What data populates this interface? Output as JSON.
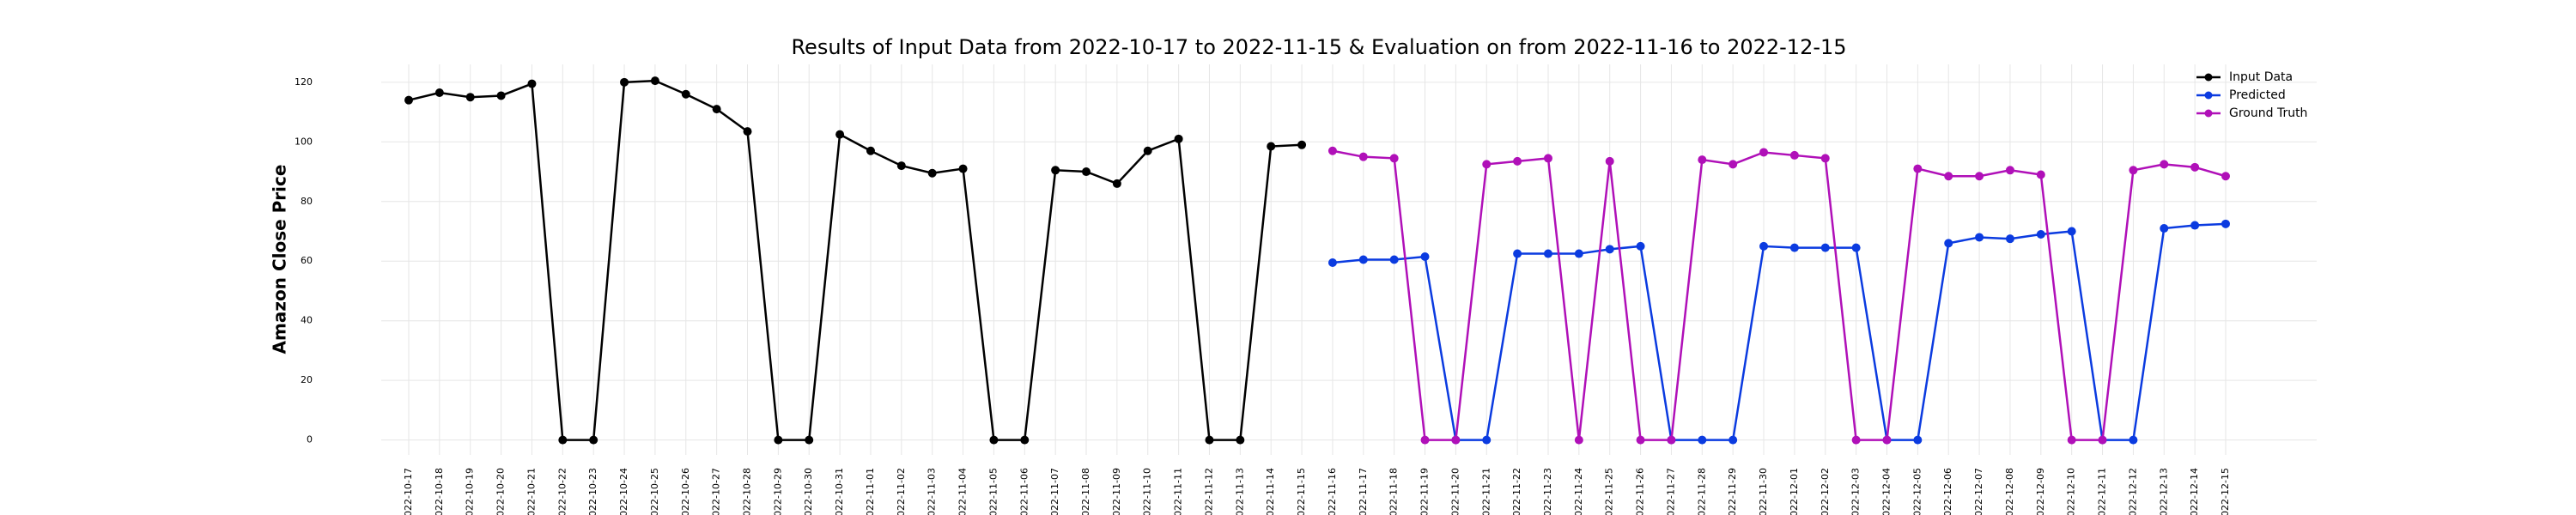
{
  "chart_data": {
    "type": "line",
    "title": "Results of Input Data from 2022-10-17 to 2022-11-15 & Evaluation on from 2022-11-16 to 2022-12-15",
    "y_label": "Amazon Close Price",
    "categories": [
      "2022-10-17",
      "2022-10-18",
      "2022-10-19",
      "2022-10-20",
      "2022-10-21",
      "2022-10-22",
      "2022-10-23",
      "2022-10-24",
      "2022-10-25",
      "2022-10-26",
      "2022-10-27",
      "2022-10-28",
      "2022-10-29",
      "2022-10-30",
      "2022-10-31",
      "2022-11-01",
      "2022-11-02",
      "2022-11-03",
      "2022-11-04",
      "2022-11-05",
      "2022-11-06",
      "2022-11-07",
      "2022-11-08",
      "2022-11-09",
      "2022-11-10",
      "2022-11-11",
      "2022-11-12",
      "2022-11-13",
      "2022-11-14",
      "2022-11-15",
      "2022-11-16",
      "2022-11-17",
      "2022-11-18",
      "2022-11-19",
      "2022-11-20",
      "2022-11-21",
      "2022-11-22",
      "2022-11-23",
      "2022-11-24",
      "2022-11-25",
      "2022-11-26",
      "2022-11-27",
      "2022-11-28",
      "2022-11-29",
      "2022-11-30",
      "2022-12-01",
      "2022-12-02",
      "2022-12-03",
      "2022-12-04",
      "2022-12-05",
      "2022-12-06",
      "2022-12-07",
      "2022-12-08",
      "2022-12-09",
      "2022-12-10",
      "2022-12-11",
      "2022-12-12",
      "2022-12-13",
      "2022-12-14",
      "2022-12-15"
    ],
    "series": [
      {
        "name": "Input Data",
        "color": "#000000",
        "values": [
          114,
          116.5,
          115,
          115.5,
          119.5,
          0,
          0,
          120,
          120.5,
          116,
          111,
          103.5,
          0,
          0,
          102.5,
          97,
          92,
          89.5,
          91,
          0,
          0,
          90.5,
          90,
          86,
          97,
          101,
          0,
          0,
          98.5,
          99,
          null,
          null,
          null,
          null,
          null,
          null,
          null,
          null,
          null,
          null,
          null,
          null,
          null,
          null,
          null,
          null,
          null,
          null,
          null,
          null,
          null,
          null,
          null,
          null,
          null,
          null,
          null,
          null,
          null,
          null
        ]
      },
      {
        "name": "Predicted",
        "color": "#0b3be0",
        "values": [
          null,
          null,
          null,
          null,
          null,
          null,
          null,
          null,
          null,
          null,
          null,
          null,
          null,
          null,
          null,
          null,
          null,
          null,
          null,
          null,
          null,
          null,
          null,
          null,
          null,
          null,
          null,
          null,
          null,
          null,
          59.5,
          60.5,
          60.5,
          61.5,
          0,
          0,
          62.5,
          62.5,
          62.5,
          64,
          65,
          0,
          0,
          0,
          65,
          64.5,
          64.5,
          64.5,
          0,
          0,
          66,
          68,
          67.5,
          69,
          70,
          0,
          0,
          71,
          72,
          72.5
        ]
      },
      {
        "name": "Ground Truth",
        "color": "#b010b8",
        "values": [
          null,
          null,
          null,
          null,
          null,
          null,
          null,
          null,
          null,
          null,
          null,
          null,
          null,
          null,
          null,
          null,
          null,
          null,
          null,
          null,
          null,
          null,
          null,
          null,
          null,
          null,
          null,
          null,
          null,
          null,
          97,
          95,
          94.5,
          0,
          0,
          92.5,
          93.5,
          94.5,
          0,
          93.5,
          0,
          0,
          94,
          92.5,
          96.5,
          95.5,
          94.5,
          0,
          0,
          91,
          88.5,
          88.5,
          90.5,
          89,
          0,
          0,
          90.5,
          92.5,
          91.5,
          88.5
        ]
      }
    ],
    "ylim": [
      -5,
      126
    ],
    "yticks": [
      0,
      20,
      40,
      60,
      80,
      100,
      120
    ],
    "grid": true,
    "legend": "upper right"
  }
}
